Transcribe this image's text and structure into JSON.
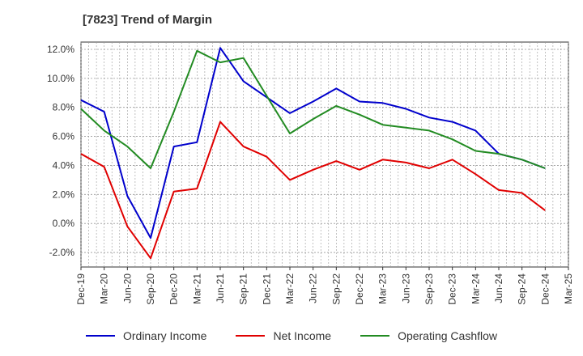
{
  "title": "[7823]  Trend of Margin",
  "colors": {
    "grid": "#999999",
    "axis": "#333333"
  },
  "chart_data": {
    "type": "line",
    "title": "[7823]  Trend of Margin",
    "xlabel": "",
    "ylabel": "",
    "x": [
      "Dec-19",
      "Mar-20",
      "Jun-20",
      "Sep-20",
      "Dec-20",
      "Mar-21",
      "Jun-21",
      "Sep-21",
      "Dec-21",
      "Mar-22",
      "Jun-22",
      "Sep-22",
      "Dec-22",
      "Mar-23",
      "Jun-23",
      "Sep-23",
      "Dec-23",
      "Mar-24",
      "Jun-24",
      "Sep-24",
      "Dec-24",
      "Mar-25"
    ],
    "ylim": [
      -3.0,
      12.5
    ],
    "yticks": [
      -2.0,
      0.0,
      2.0,
      4.0,
      6.0,
      8.0,
      10.0,
      12.0
    ],
    "ytick_labels": [
      "-2.0%",
      "0.0%",
      "2.0%",
      "4.0%",
      "6.0%",
      "8.0%",
      "10.0%",
      "12.0%"
    ],
    "grid": true,
    "legend_position": "bottom",
    "series": [
      {
        "name": "Ordinary Income",
        "color": "#0000cc",
        "values": [
          8.5,
          7.7,
          1.9,
          -1.0,
          5.3,
          5.6,
          12.1,
          9.8,
          8.7,
          7.6,
          8.4,
          9.3,
          8.4,
          8.3,
          7.9,
          7.3,
          7.0,
          6.4,
          4.8,
          4.4,
          3.8,
          null
        ]
      },
      {
        "name": "Net Income",
        "color": "#e00000",
        "values": [
          4.8,
          3.9,
          -0.2,
          -2.4,
          2.2,
          2.4,
          7.0,
          5.3,
          4.6,
          3.0,
          3.7,
          4.3,
          3.7,
          4.4,
          4.2,
          3.8,
          4.4,
          3.4,
          2.3,
          2.1,
          0.9,
          null
        ]
      },
      {
        "name": "Operating Cashflow",
        "color": "#228b22",
        "values": [
          7.9,
          6.4,
          5.3,
          3.8,
          7.7,
          11.9,
          11.1,
          11.4,
          8.8,
          6.2,
          7.2,
          8.1,
          7.5,
          6.8,
          6.6,
          6.4,
          5.8,
          5.0,
          4.8,
          4.4,
          3.8,
          null
        ]
      }
    ]
  }
}
